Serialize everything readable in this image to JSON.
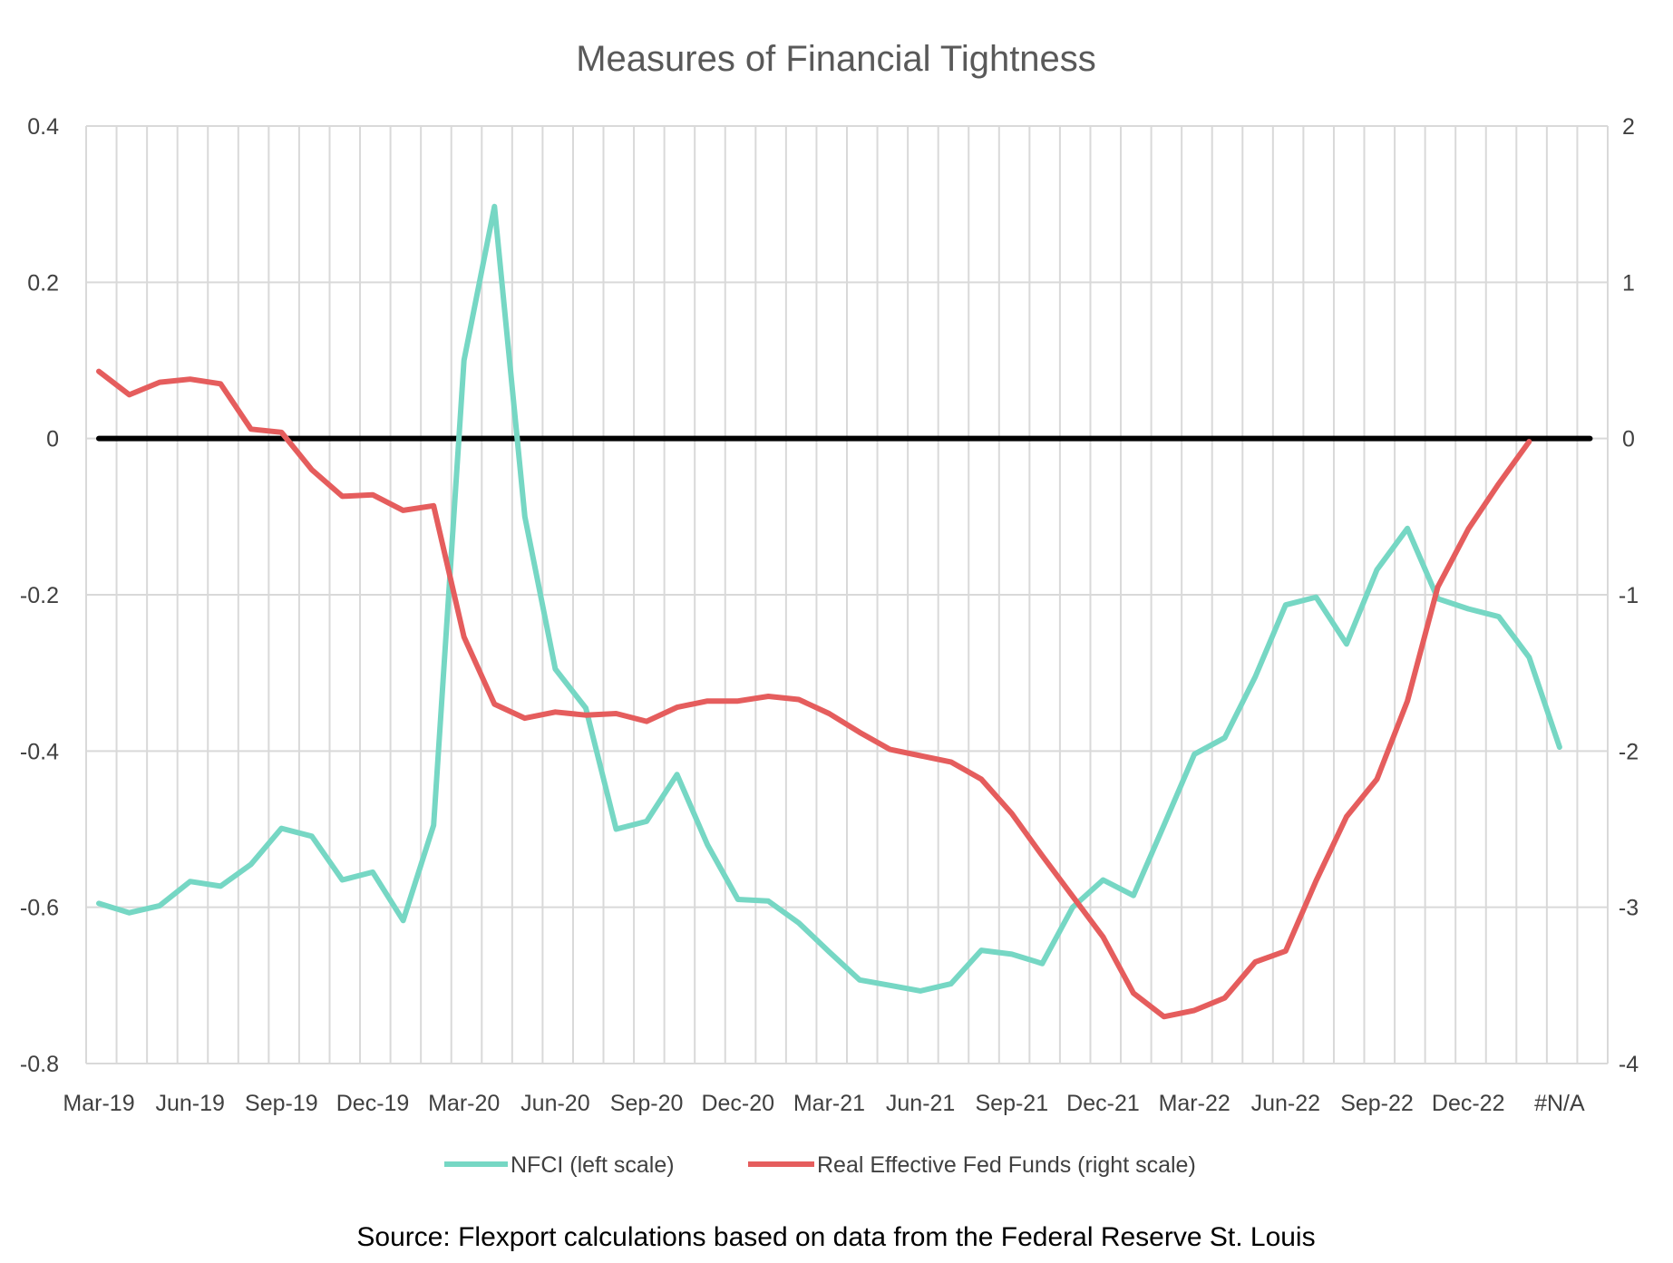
{
  "chart_data": {
    "type": "line",
    "title": "Measures of Financial Tightness",
    "source": "Source: Flexport calculations based on data from the Federal Reserve St. Louis",
    "x_tick_labels": [
      "Mar-19",
      "Jun-19",
      "Sep-19",
      "Dec-19",
      "Mar-20",
      "Jun-20",
      "Sep-20",
      "Dec-20",
      "Mar-21",
      "Jun-21",
      "Sep-21",
      "Dec-21",
      "Mar-22",
      "Jun-22",
      "Sep-22",
      "Dec-22",
      "#N/A"
    ],
    "x_count": 50,
    "y_left": {
      "ticks": [
        "0.4",
        "0.2",
        "0",
        "-0.2",
        "-0.4",
        "-0.6",
        "-0.8"
      ],
      "min": -0.8,
      "max": 0.4
    },
    "y_right": {
      "ticks": [
        "2",
        "1",
        "0",
        "-1",
        "-2",
        "-3",
        "-4"
      ],
      "min": -4,
      "max": 2
    },
    "zero_line": {
      "color": "#000000",
      "from_index": 0,
      "to_index": 49
    },
    "series": [
      {
        "name": "NFCI (left scale)",
        "axis": "left",
        "color": "#76d7c4",
        "values": [
          -0.595,
          -0.607,
          -0.598,
          -0.567,
          -0.573,
          -0.545,
          -0.499,
          -0.509,
          -0.565,
          -0.555,
          -0.617,
          -0.495,
          0.1,
          0.297,
          -0.1,
          -0.295,
          -0.345,
          -0.5,
          -0.49,
          -0.43,
          -0.52,
          -0.59,
          -0.592,
          -0.62,
          -0.657,
          -0.693,
          -0.7,
          -0.707,
          -0.698,
          -0.655,
          -0.66,
          -0.672,
          -0.6,
          -0.565,
          -0.585,
          -0.495,
          -0.404,
          -0.383,
          -0.305,
          -0.213,
          -0.203,
          -0.263,
          -0.168,
          -0.115,
          -0.205,
          -0.218,
          -0.228,
          -0.28,
          -0.395
        ]
      },
      {
        "name": "Real Effective Fed Funds (right scale)",
        "axis": "right",
        "color": "#e55d5d",
        "values": [
          0.43,
          0.28,
          0.36,
          0.38,
          0.35,
          0.06,
          0.04,
          -0.2,
          -0.37,
          -0.36,
          -0.46,
          -0.43,
          -1.27,
          -1.7,
          -1.79,
          -1.75,
          -1.77,
          -1.76,
          -1.81,
          -1.72,
          -1.68,
          -1.68,
          -1.65,
          -1.67,
          -1.76,
          -1.88,
          -1.99,
          -2.03,
          -2.07,
          -2.18,
          -2.4,
          -2.67,
          -2.93,
          -3.19,
          -3.55,
          -3.7,
          -3.66,
          -3.58,
          -3.35,
          -3.28,
          -2.83,
          -2.42,
          -2.18,
          -1.68,
          -0.95,
          -0.58,
          -0.29,
          -0.02
        ]
      }
    ]
  }
}
